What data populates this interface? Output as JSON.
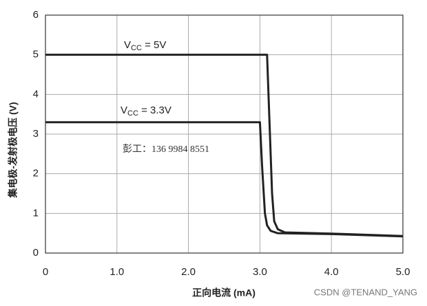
{
  "chart_data": {
    "type": "line",
    "x_label": "正向电流 (mA)",
    "y_label": "集电极-发射极电压 (V)",
    "series": [
      {
        "name": "VCC = 5V",
        "color": "#222222",
        "x": [
          0,
          3.1,
          3.13,
          3.17,
          3.2,
          3.25,
          3.35,
          4.0,
          5.0
        ],
        "values": [
          5,
          5,
          3.5,
          1.5,
          0.8,
          0.6,
          0.52,
          0.49,
          0.43
        ]
      },
      {
        "name": "VCC = 3.3V",
        "color": "#222222",
        "x": [
          0,
          3.0,
          3.03,
          3.07,
          3.1,
          3.15,
          3.25,
          4.0,
          5.0
        ],
        "values": [
          3.3,
          3.3,
          2.2,
          1.0,
          0.7,
          0.56,
          0.5,
          0.48,
          0.42
        ]
      }
    ],
    "xlim": [
      0,
      5
    ],
    "ylim": [
      0,
      6
    ],
    "xticks": [
      0,
      {
        "value": 1,
        "label": "1.0"
      },
      {
        "value": 2,
        "label": "2.0"
      },
      {
        "value": 3,
        "label": "3.0"
      },
      {
        "value": 4,
        "label": "4.0"
      },
      {
        "value": 5,
        "label": "5.0"
      }
    ],
    "yticks": [
      0,
      1,
      2,
      3,
      4,
      5,
      6
    ],
    "grid": true,
    "watermark": "彭工：136 9984 8551",
    "source": "CSDN @TENAND_YANG"
  }
}
